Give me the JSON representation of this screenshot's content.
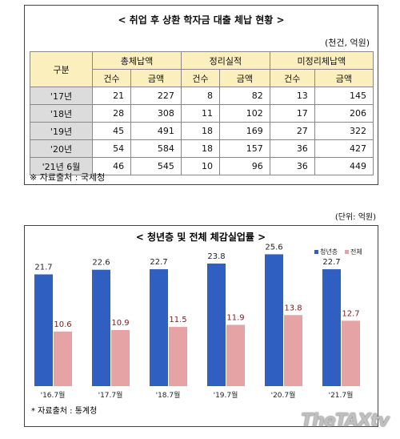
{
  "table": {
    "title": "< 취업 후 상환 학자금 대출 체납 현황 >",
    "unit": "(천건, 억원)",
    "header_rowlabel": "구분",
    "groups": [
      "총체납액",
      "정리실적",
      "미정리체납액"
    ],
    "subheaders": [
      "건수",
      "금액",
      "건수",
      "금액",
      "건수",
      "금액"
    ],
    "rows": [
      {
        "label": "'17년",
        "values": [
          "21",
          "227",
          "8",
          "82",
          "13",
          "145"
        ]
      },
      {
        "label": "'18년",
        "values": [
          "28",
          "308",
          "11",
          "102",
          "17",
          "206"
        ]
      },
      {
        "label": "'19년",
        "values": [
          "45",
          "491",
          "18",
          "169",
          "27",
          "322"
        ]
      },
      {
        "label": "'20년",
        "values": [
          "54",
          "584",
          "18",
          "157",
          "36",
          "427"
        ]
      },
      {
        "label": "'21년 6월",
        "values": [
          "46",
          "545",
          "10",
          "96",
          "36",
          "449"
        ]
      }
    ],
    "source": "※  자료출처 : 국세청",
    "header_color": "#fbefbd",
    "rowlabel_color": "#dcdcdc"
  },
  "chart_unit": "(단위: 억원)",
  "chart_data": {
    "type": "bar",
    "title": "< 청년층 및 전체 체감실업률 >",
    "categories": [
      "'16.7월",
      "'17.7월",
      "'18.7월",
      "'19.7월",
      "'20.7월",
      "'21.7월"
    ],
    "series": [
      {
        "name": "청년층",
        "values": [
          21.7,
          22.6,
          22.7,
          23.8,
          25.6,
          22.7
        ],
        "color": "#2f5fc0",
        "label_color": "#222222"
      },
      {
        "name": "전체",
        "values": [
          10.6,
          10.9,
          11.5,
          11.9,
          13.8,
          12.7
        ],
        "color": "#e6a3a5",
        "label_color": "#7a2020"
      }
    ],
    "data_labels": [
      [
        "21.7",
        "22.6",
        "22.7",
        "23.8",
        "25.6",
        "22.7"
      ],
      [
        "10.6",
        "10.9",
        "11.5",
        "11.9",
        "13.8",
        "12.7"
      ]
    ],
    "ylim": [
      0,
      28
    ],
    "legend_position": "top-right",
    "grid": false,
    "source": "* 자료출처 : 통계청"
  },
  "watermark": "TheTAXtv"
}
